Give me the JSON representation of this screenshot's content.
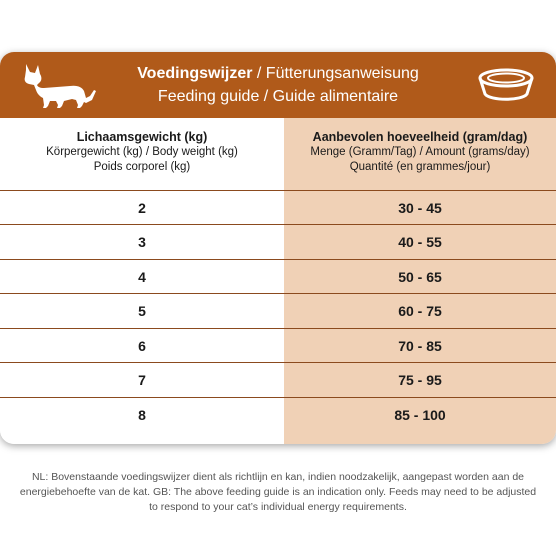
{
  "header": {
    "title_nl": "Voedingswijzer",
    "title_de": " / Fütterungsanweisung",
    "title_en_fr": "Feeding guide / Guide alimentaire"
  },
  "columns": {
    "weight": {
      "title": "Lichaamsgewicht (kg)",
      "line2": "Körpergewicht (kg) / Body weight (kg)",
      "line3": "Poids corporel (kg)"
    },
    "amount": {
      "title": "Aanbevolen hoeveelheid (gram/dag)",
      "line2": "Menge (Gramm/Tag) / Amount (grams/day)",
      "line3": "Quantité (en grammes/jour)"
    }
  },
  "rows": [
    {
      "weight": "2",
      "amount": "30 - 45"
    },
    {
      "weight": "3",
      "amount": "40 - 55"
    },
    {
      "weight": "4",
      "amount": "50 - 65"
    },
    {
      "weight": "5",
      "amount": "60 - 75"
    },
    {
      "weight": "6",
      "amount": "70 - 85"
    },
    {
      "weight": "7",
      "amount": "75 - 95"
    },
    {
      "weight": "8",
      "amount": "85 - 100"
    }
  ],
  "footnote": {
    "line1": "NL: Bovenstaande voedingswijzer dient als richtlijn en kan, indien noodzakelijk, aangepast worden aan de",
    "line2": "energiebehoefte van de kat. GB: The above feeding guide is an indication only. Feeds may need to be adjusted",
    "line3": "to respond to your cat’s individual energy requirements."
  },
  "colors": {
    "header": "#b05a1a",
    "amount_column": "#f0d1b6",
    "divider": "#8b4a1e"
  },
  "icons": {
    "left": "cat-icon",
    "right": "food-bowl-icon"
  }
}
